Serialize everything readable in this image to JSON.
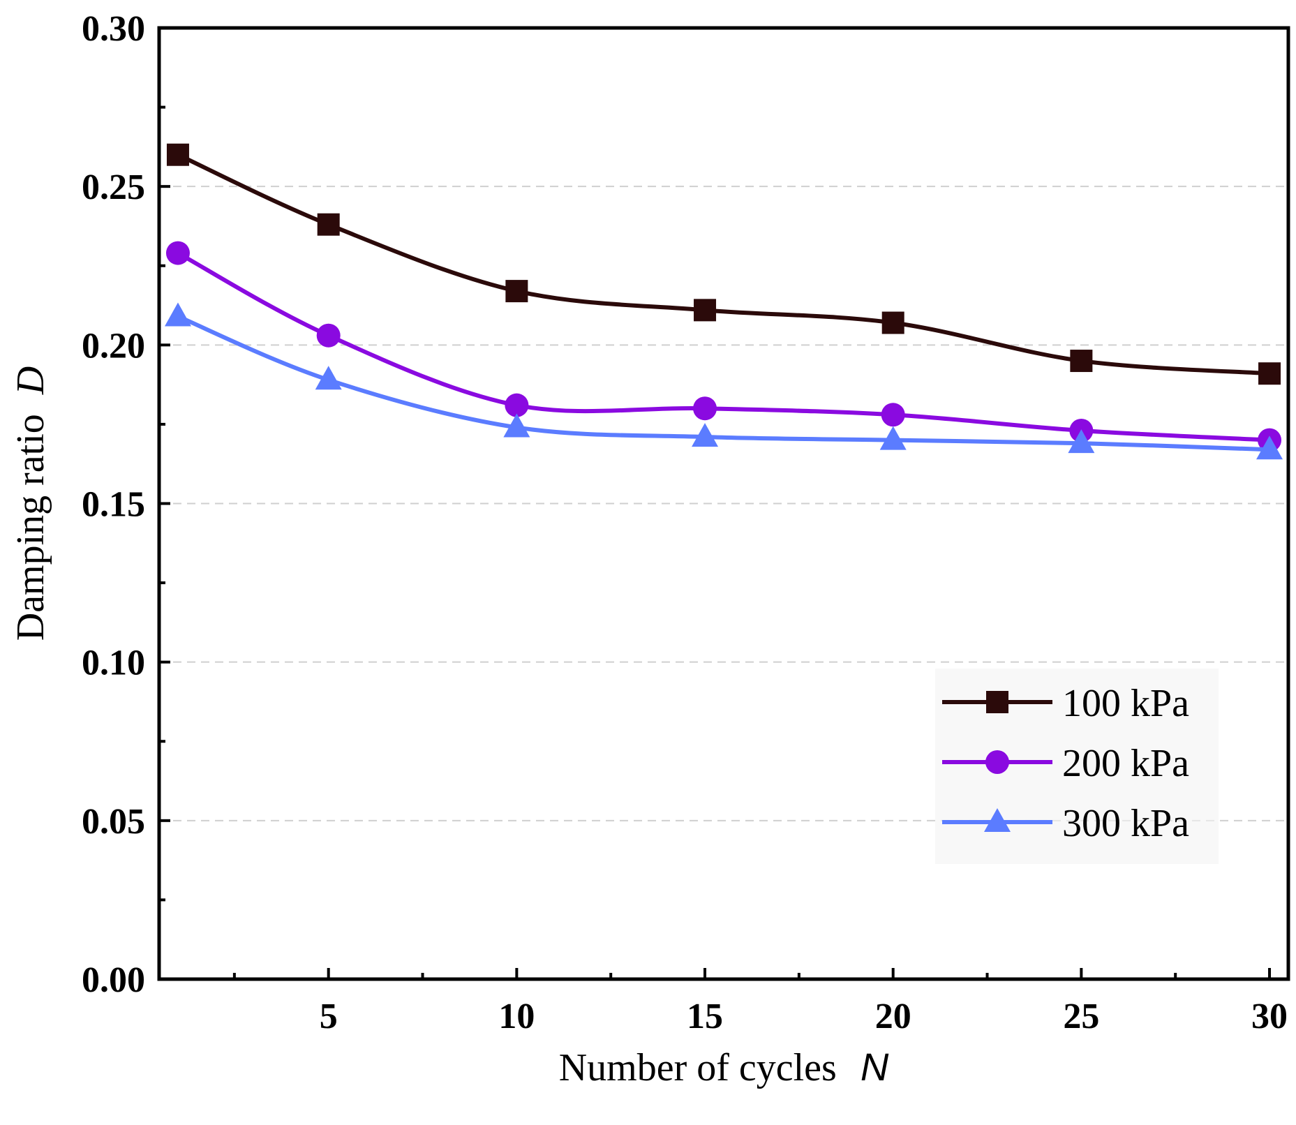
{
  "chart_data": {
    "type": "line",
    "title": "",
    "xlabel": "Number of cycles",
    "xlabel_symbol": "N",
    "ylabel": "Damping ratio",
    "ylabel_symbol": "D",
    "xlim": [
      0.5,
      30.5
    ],
    "ylim": [
      0.0,
      0.3
    ],
    "xticks": [
      5,
      10,
      15,
      20,
      25,
      30
    ],
    "xtick_labels": [
      "5",
      "10",
      "15",
      "20",
      "25",
      "30"
    ],
    "yticks": [
      0.0,
      0.05,
      0.1,
      0.15,
      0.2,
      0.25,
      0.3
    ],
    "ytick_labels": [
      "0.00",
      "0.05",
      "0.10",
      "0.15",
      "0.20",
      "0.25",
      "0.30"
    ],
    "grid": "horizontal dashed",
    "legend_position": "right",
    "x": [
      1,
      5,
      10,
      15,
      20,
      25,
      30
    ],
    "series": [
      {
        "name": "100 kPa",
        "marker": "square",
        "color": "#2b0a0a",
        "values": [
          0.26,
          0.238,
          0.217,
          0.211,
          0.207,
          0.195,
          0.191
        ]
      },
      {
        "name": "200 kPa",
        "marker": "circle",
        "color": "#8a0ae0",
        "values": [
          0.229,
          0.203,
          0.181,
          0.18,
          0.178,
          0.173,
          0.17
        ]
      },
      {
        "name": "300 kPa",
        "marker": "triangle",
        "color": "#5b7cff",
        "values": [
          0.209,
          0.189,
          0.174,
          0.171,
          0.17,
          0.169,
          0.167
        ]
      }
    ]
  }
}
